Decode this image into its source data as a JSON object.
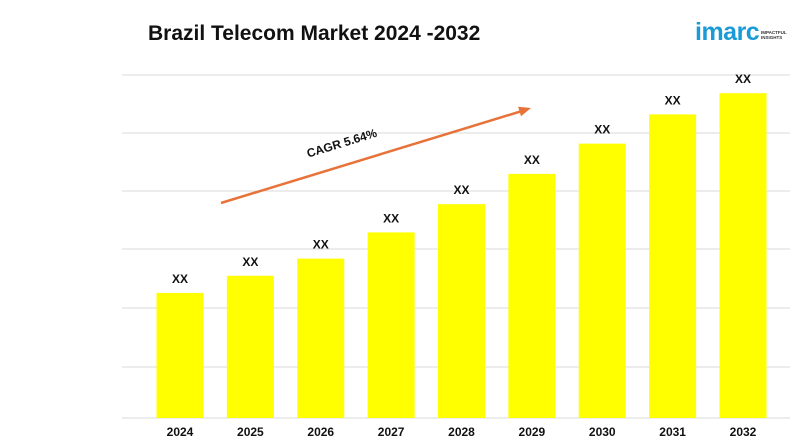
{
  "header": {
    "title": "Brazil Telecom Market 2024 -2032"
  },
  "logo": {
    "word": "imarc",
    "tagline": "IMPACTFUL INSIGHTS",
    "color": "#1a9ad6"
  },
  "chart_data": {
    "type": "bar",
    "title": "Brazil Telecom Market 2024 -2032",
    "xlabel": "",
    "ylabel": "",
    "categories": [
      "2024",
      "2025",
      "2026",
      "2027",
      "2028",
      "2029",
      "2030",
      "2031",
      "2032"
    ],
    "values": [
      124,
      141,
      158,
      184,
      212,
      242,
      272,
      301,
      322
    ],
    "value_note": "relative bar heights; actual values hidden",
    "data_labels": [
      "XX",
      "XX",
      "XX",
      "XX",
      "XX",
      "XX",
      "XX",
      "XX",
      "XX"
    ],
    "ylim": [
      0,
      345
    ],
    "grid": true,
    "legend": "none",
    "bar_color": "#ffff00",
    "annotation": {
      "text": "CAGR 5.64%",
      "arrow_color": "#e8733a"
    }
  }
}
